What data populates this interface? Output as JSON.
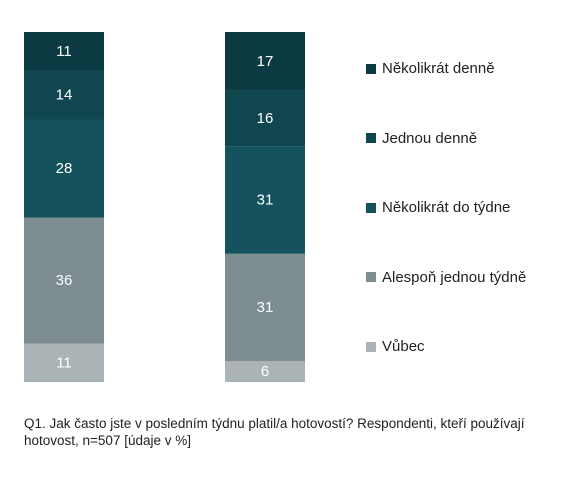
{
  "chart_data": {
    "type": "bar",
    "stacked": true,
    "orientation": "vertical",
    "categories": [
      "",
      ""
    ],
    "series": [
      {
        "name": "Vůbec",
        "values": [
          11,
          6
        ],
        "color": "#aab4b6"
      },
      {
        "name": "Alespoň jednou týdně",
        "values": [
          36,
          31
        ],
        "color": "#7d8d91"
      },
      {
        "name": "Několikrát do týdne",
        "values": [
          28,
          31
        ],
        "color": "#14535d"
      },
      {
        "name": "Jednou denně",
        "values": [
          14,
          16
        ],
        "color": "#0f4650"
      },
      {
        "name": "Několikrát denně",
        "values": [
          11,
          17
        ],
        "color": "#0b3a42"
      }
    ],
    "legend_order": [
      "Několikrát denně",
      "Jednou denně",
      "Několikrát do týdne",
      "Alespoň jednou týdně",
      "Vůbec"
    ],
    "legend_position": "right",
    "data_labels": true,
    "grid": false,
    "axes_visible": false
  },
  "caption": "Q1. Jak často jste v posledním týdnu platil/a hotovostí? Respondenti, kteří používají hotovost, n=507 [údaje v %]"
}
